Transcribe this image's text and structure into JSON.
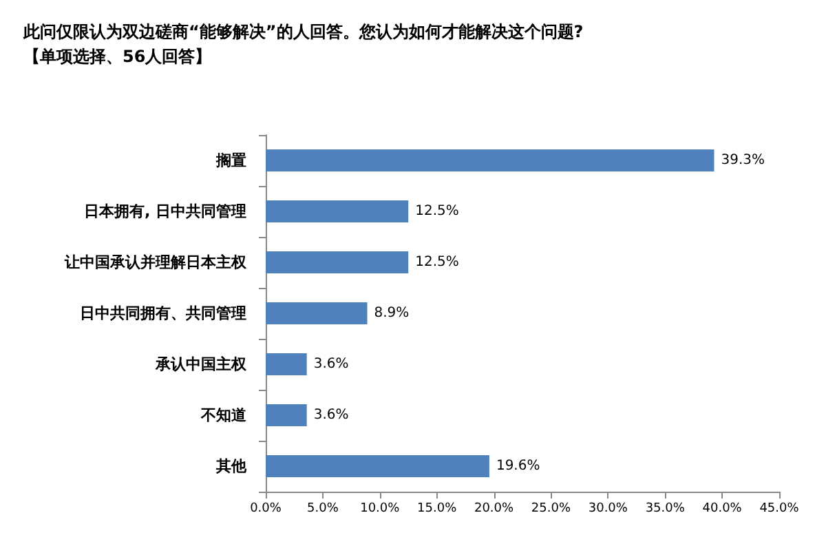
{
  "chart_data": {
    "type": "bar",
    "orientation": "horizontal",
    "title": "此问仅限认为双边磋商“能够解决”的人回答。您认为如何才能解决这个问题?",
    "subtitle": "【单项选择、56人回答】",
    "categories": [
      "搁置",
      "日本拥有, 日中共同管理",
      "让中国承认并理解日本主权",
      "日中共同拥有、共同管理",
      "承认中国主权",
      "不知道",
      "其他"
    ],
    "values": [
      39.3,
      12.5,
      12.5,
      8.9,
      3.6,
      3.6,
      19.6
    ],
    "value_labels": [
      "39.3%",
      "12.5%",
      "12.5%",
      "8.9%",
      "3.6%",
      "3.6%",
      "19.6%"
    ],
    "color": "#4f81bd",
    "xlim": [
      0,
      45
    ],
    "xticks": [
      {
        "value": 0,
        "label": "0.0%"
      },
      {
        "value": 5,
        "label": "5.0%"
      },
      {
        "value": 10,
        "label": "10.0%"
      },
      {
        "value": 15,
        "label": "15.0%"
      },
      {
        "value": 20,
        "label": "20.0%"
      },
      {
        "value": 25,
        "label": "25.0%"
      },
      {
        "value": 30,
        "label": "30.0%"
      },
      {
        "value": 35,
        "label": "35.0%"
      },
      {
        "value": 40,
        "label": "40.0%"
      },
      {
        "value": 45,
        "label": "45.0%"
      }
    ],
    "grid": false
  }
}
